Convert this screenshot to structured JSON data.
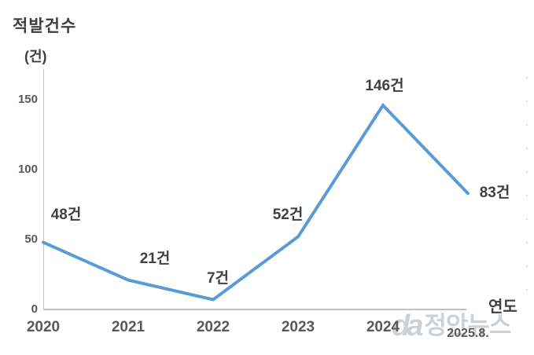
{
  "chart_data": {
    "type": "line",
    "title": "적발건수",
    "ylabel_unit": "(건)",
    "xlabel": "연도",
    "categories": [
      "2020",
      "2021",
      "2022",
      "2023",
      "2024",
      "2025.8."
    ],
    "values": [
      48,
      21,
      7,
      52,
      146,
      83
    ],
    "data_labels": [
      "48건",
      "21건",
      "7건",
      "52건",
      "146건",
      "83건"
    ],
    "yticks": [
      0,
      50,
      100,
      150
    ],
    "ylim": [
      0,
      172
    ],
    "grid": false,
    "legend": "none",
    "line_color": "#5b9bd5",
    "axis_color": "#bfbfbf",
    "data_label_color": "#404040",
    "tick_label_color": "#595959"
  },
  "watermark": {
    "logo": "da",
    "text": "정안뉴스"
  }
}
